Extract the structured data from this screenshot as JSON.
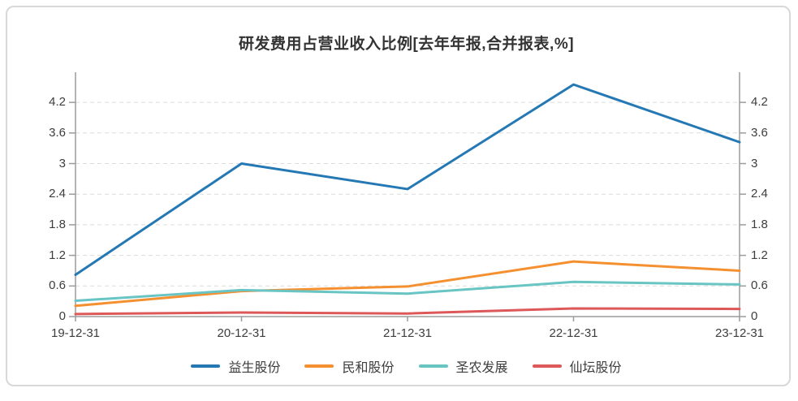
{
  "chart_data": {
    "type": "line",
    "title": "研发费用占营业收入比例[去年年报,合并报表,%]",
    "x": [
      "19-12-31",
      "20-12-31",
      "21-12-31",
      "22-12-31",
      "23-12-31"
    ],
    "series": [
      {
        "name": "益生股份",
        "color": "#2478b4",
        "values": [
          0.82,
          3.0,
          2.5,
          4.55,
          3.42
        ]
      },
      {
        "name": "民和股份",
        "color": "#f59031",
        "values": [
          0.21,
          0.5,
          0.59,
          1.08,
          0.9
        ]
      },
      {
        "name": "圣农发展",
        "color": "#68c5c3",
        "values": [
          0.31,
          0.52,
          0.45,
          0.68,
          0.63
        ]
      },
      {
        "name": "仙坛股份",
        "color": "#dd5858",
        "values": [
          0.05,
          0.08,
          0.06,
          0.16,
          0.15
        ]
      }
    ],
    "y_ticks": [
      0,
      0.6,
      1.2,
      1.8,
      2.4,
      3,
      3.6,
      4.2
    ],
    "y_tick_labels": [
      "0",
      "0.6",
      "1.2",
      "1.8",
      "2.4",
      "3",
      "3.6",
      "4.2"
    ],
    "ylim": [
      0,
      4.78
    ],
    "dual_y_axis": true,
    "grid": "dashed-horizontal",
    "legend_position": "bottom",
    "colors": {
      "grid": "#dcdcdc",
      "axis": "#9b9b9b",
      "text": "#3d3d3d"
    }
  }
}
